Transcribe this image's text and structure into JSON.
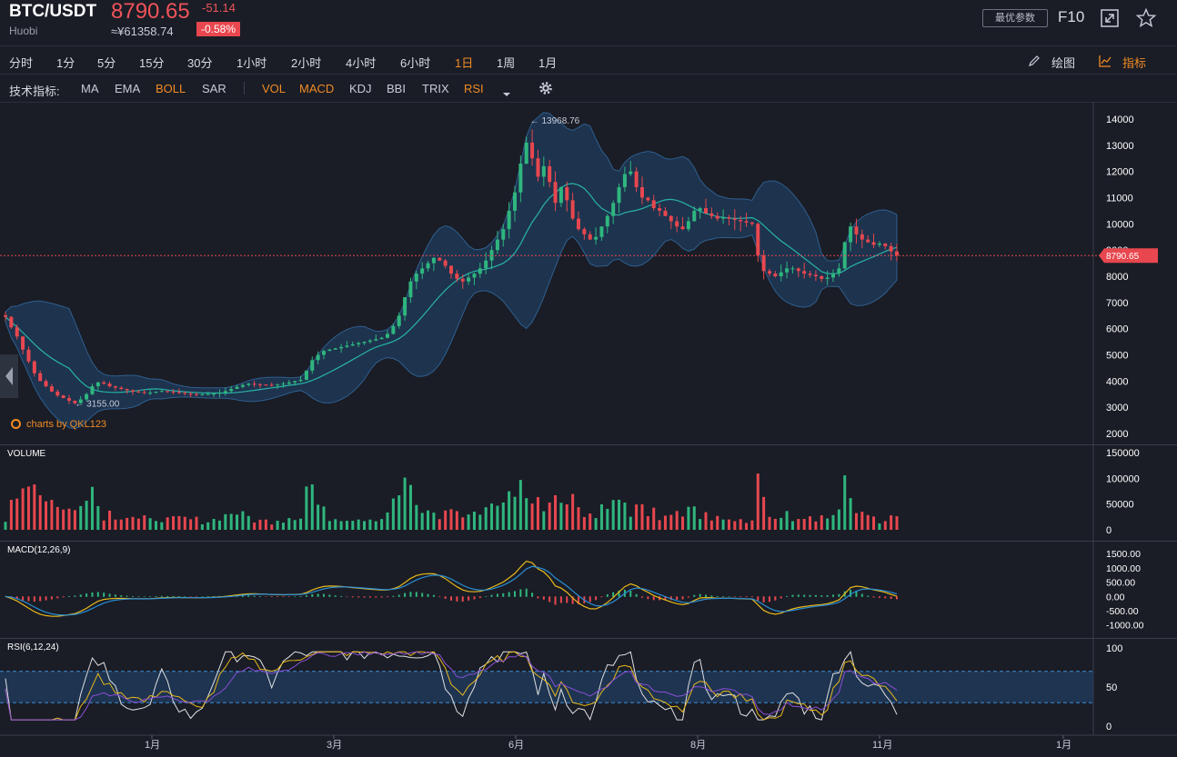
{
  "header": {
    "symbol": "BTC/USDT",
    "exchange": "Huobi",
    "price": "8790.65",
    "change": "-51.14",
    "cny_price": "≈¥61358.74",
    "change_pct": "-0.58%",
    "best_params_label": "最优参数",
    "f10_label": "F10",
    "icons": [
      "fullscreen-icon",
      "star-icon"
    ]
  },
  "periods": [
    "分时",
    "1分",
    "5分",
    "15分",
    "30分",
    "1小时",
    "2小时",
    "4小时",
    "6小时",
    "1日",
    "1周",
    "1月"
  ],
  "active_period": "1日",
  "tools": {
    "draw_label": "绘图",
    "indicator_label": "指标"
  },
  "indicators": {
    "label": "技术指标:",
    "main": [
      "MA",
      "EMA",
      "BOLL",
      "SAR"
    ],
    "sub": [
      "VOL",
      "MACD",
      "KDJ",
      "BBI",
      "TRIX",
      "RSI"
    ],
    "active": [
      "BOLL",
      "VOL",
      "MACD",
      "RSI"
    ]
  },
  "watermark": "charts by QKL123",
  "colors": {
    "up": "#2fb67e",
    "down": "#e8474f",
    "accent": "#f08a24",
    "bg": "#1a1d26"
  },
  "chart_data": [
    {
      "type": "candlestick",
      "title": "",
      "indicator": "BOLL",
      "x_ticks": [
        "1月",
        "3月",
        "6月",
        "8月",
        "11月",
        "1月"
      ],
      "y_ticks": [
        2000,
        3000,
        4000,
        5000,
        6000,
        7000,
        8000,
        9000,
        10000,
        11000,
        12000,
        13000,
        14000
      ],
      "ylim": [
        2000,
        14000
      ],
      "current_price_label": "8790.65",
      "annotations": [
        {
          "text": "13968.76",
          "value": 13968.76
        },
        {
          "text": "3155.00",
          "value": 3155.0
        }
      ],
      "close_series": [
        6450,
        6050,
        5700,
        5200,
        4750,
        4300,
        4000,
        3800,
        3600,
        3450,
        3350,
        3250,
        3155,
        3300,
        3500,
        3800,
        3950,
        3900,
        3800,
        3750,
        3700,
        3650,
        3600,
        3580,
        3550,
        3560,
        3590,
        3620,
        3600,
        3580,
        3550,
        3520,
        3500,
        3480,
        3490,
        3500,
        3520,
        3560,
        3620,
        3700,
        3780,
        3850,
        3900,
        3880,
        3870,
        3860,
        3850,
        3880,
        3900,
        3950,
        4000,
        4050,
        4400,
        4800,
        5000,
        5150,
        5200,
        5250,
        5300,
        5350,
        5400,
        5450,
        5500,
        5550,
        5600,
        5650,
        5800,
        6100,
        6500,
        7200,
        7800,
        8100,
        8300,
        8500,
        8700,
        8600,
        8400,
        8100,
        7900,
        7800,
        7950,
        8100,
        8300,
        8600,
        9000,
        9400,
        9800,
        10500,
        11200,
        12300,
        13100,
        12500,
        11800,
        12200,
        11600,
        10800,
        11400,
        10900,
        10200,
        9800,
        9600,
        9400,
        9500,
        9900,
        10300,
        10800,
        11400,
        11900,
        12000,
        11400,
        11000,
        10900,
        10600,
        10500,
        10300,
        10100,
        9900,
        9800,
        10100,
        10500,
        10600,
        10400,
        10300,
        10200,
        10250,
        10200,
        10150,
        10100,
        10050,
        10000,
        8800,
        8200,
        8100,
        8000,
        8150,
        8300,
        8300,
        8200,
        8100,
        8050,
        8000,
        7900,
        7950,
        8100,
        8300,
        9300,
        9900,
        9600,
        9400,
        9300,
        9200,
        9250,
        9150,
        8950,
        8790.65
      ]
    },
    {
      "type": "bar",
      "title": "VOLUME",
      "y_ticks": [
        0,
        50000,
        100000,
        150000
      ],
      "ylim": [
        0,
        150000
      ]
    },
    {
      "type": "line",
      "title": "MACD(12,26,9)",
      "y_ticks": [
        "1500.00",
        "1000.00",
        "500.00",
        "0.00",
        "-500.00",
        "-1000.00"
      ],
      "ylim": [
        -1200,
        1600
      ]
    },
    {
      "type": "line",
      "title": "RSI(6,12,24)",
      "y_ticks": [
        0,
        50,
        100
      ],
      "ylim": [
        0,
        100
      ],
      "bands": [
        30,
        70
      ]
    }
  ]
}
